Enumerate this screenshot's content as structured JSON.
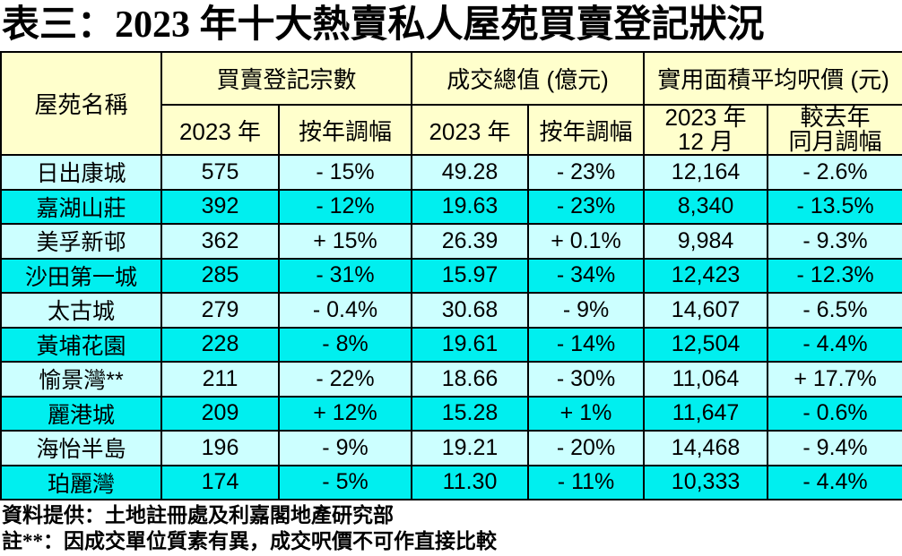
{
  "title": "表三：2023 年十大熱賣私人屋苑買賣登記狀況",
  "colors": {
    "header_bg": "#FFFFCC",
    "row_light_bg": "#CCFFFF",
    "row_bright_bg": "#00EFEF",
    "border": "#000000",
    "text": "#000000",
    "page_bg": "#FFFFFF"
  },
  "table": {
    "header": {
      "estate_name": "屋苑名稱",
      "group_registrations": "買賣登記宗數",
      "group_total_value": "成交總值 (億元)",
      "group_avg_price": "實用面積平均呎價 (元)",
      "reg_year": "2023 年",
      "reg_change": "按年調幅",
      "value_year": "2023 年",
      "value_change": "按年調幅",
      "price_month_line1": "2023 年",
      "price_month_line2": "12 月",
      "price_change_line1": "較去年",
      "price_change_line2": "同月調幅"
    }
  },
  "chart_data": {
    "type": "table",
    "title": "表三：2023 年十大熱賣私人屋苑買賣登記狀況",
    "column_groups": [
      {
        "label": "屋苑名稱",
        "span": 1
      },
      {
        "label": "買賣登記宗數",
        "span": 2
      },
      {
        "label": "成交總值 (億元)",
        "span": 2
      },
      {
        "label": "實用面積平均呎價 (元)",
        "span": 2
      }
    ],
    "columns": [
      "屋苑名稱",
      "買賣登記宗數 2023 年",
      "買賣登記宗數 按年調幅",
      "成交總值 (億元) 2023 年",
      "成交總值 (億元) 按年調幅",
      "實用面積平均呎價 (元) 2023 年 12 月",
      "實用面積平均呎價 (元) 較去年同月調幅"
    ],
    "rows": [
      [
        "日出康城",
        "575",
        "- 15%",
        "49.28",
        "- 23%",
        "12,164",
        "- 2.6%"
      ],
      [
        "嘉湖山莊",
        "392",
        "- 12%",
        "19.63",
        "- 23%",
        "8,340",
        "- 13.5%"
      ],
      [
        "美孚新邨",
        "362",
        "+ 15%",
        "26.39",
        "+ 0.1%",
        "9,984",
        "- 9.3%"
      ],
      [
        "沙田第一城",
        "285",
        "- 31%",
        "15.97",
        "- 34%",
        "12,423",
        "- 12.3%"
      ],
      [
        "太古城",
        "279",
        "- 0.4%",
        "30.68",
        "- 9%",
        "14,607",
        "- 6.5%"
      ],
      [
        "黃埔花園",
        "228",
        "- 8%",
        "19.61",
        "- 14%",
        "12,504",
        "- 4.4%"
      ],
      [
        "愉景灣**",
        "211",
        "- 22%",
        "18.66",
        "- 30%",
        "11,064",
        "+ 17.7%"
      ],
      [
        "麗港城",
        "209",
        "+ 12%",
        "15.28",
        "+ 1%",
        "11,647",
        "- 0.6%"
      ],
      [
        "海怡半島",
        "196",
        "- 9%",
        "19.21",
        "- 20%",
        "14,468",
        "- 9.4%"
      ],
      [
        "珀麗灣",
        "174",
        "- 5%",
        "11.30",
        "- 11%",
        "10,333",
        "- 4.4%"
      ]
    ]
  },
  "footer": {
    "source": "資料提供：土地註冊處及利嘉閣地產研究部",
    "note": "註**：因成交單位質素有異，成交呎價不可作直接比較"
  }
}
